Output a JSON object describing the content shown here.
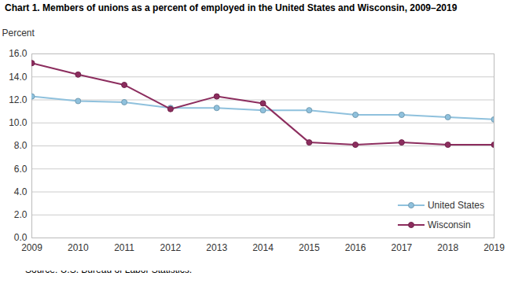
{
  "chart_data": {
    "type": "line",
    "title": "Chart 1. Members of unions as a percent of employed in the United States and Wisconsin, 2009–2019",
    "y_label": "Percent",
    "caption": "Source: U.S. Bureau of Labor Statistics.",
    "x": [
      2009,
      2010,
      2011,
      2012,
      2013,
      2014,
      2015,
      2016,
      2017,
      2018,
      2019
    ],
    "series": [
      {
        "name": "United States",
        "color": "#8fc1dd",
        "marker": "circle",
        "values": [
          12.3,
          11.9,
          11.8,
          11.3,
          11.3,
          11.1,
          11.1,
          10.7,
          10.7,
          10.5,
          10.3
        ]
      },
      {
        "name": "Wisconsin",
        "color": "#8c2d5e",
        "marker": "circle",
        "values": [
          15.2,
          14.2,
          13.3,
          11.2,
          12.3,
          11.7,
          8.3,
          8.1,
          8.3,
          8.1,
          8.1
        ]
      }
    ],
    "xlim": [
      2009,
      2019
    ],
    "xticks": [
      2009,
      2010,
      2011,
      2012,
      2013,
      2014,
      2015,
      2016,
      2017,
      2018,
      2019
    ],
    "ylim": [
      0,
      16
    ],
    "yticks": [
      {
        "value": 0,
        "label": "0.0"
      },
      {
        "value": 2,
        "label": "2.0"
      },
      {
        "value": 4,
        "label": "4.0"
      },
      {
        "value": 6,
        "label": "6.0"
      },
      {
        "value": 8,
        "label": "8.0"
      },
      {
        "value": 10,
        "label": "10.0"
      },
      {
        "value": 12,
        "label": "12.0"
      },
      {
        "value": 14,
        "label": "14.0"
      },
      {
        "value": 16,
        "label": "16.0"
      }
    ],
    "grid": true,
    "legend": "bottom-right"
  }
}
